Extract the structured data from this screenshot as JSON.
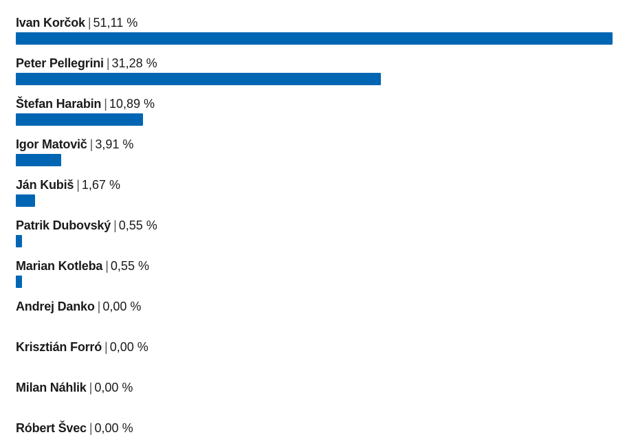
{
  "chart_data": {
    "type": "bar",
    "orientation": "horizontal",
    "bar_color": "#0066b3",
    "max_value": 51.11,
    "unit": "%",
    "items": [
      {
        "name": "Ivan Korčok",
        "value": 51.11,
        "label": "51,11 %"
      },
      {
        "name": "Peter Pellegrini",
        "value": 31.28,
        "label": "31,28 %"
      },
      {
        "name": "Štefan Harabin",
        "value": 10.89,
        "label": "10,89 %"
      },
      {
        "name": "Igor Matovič",
        "value": 3.91,
        "label": "3,91 %"
      },
      {
        "name": "Ján Kubiš",
        "value": 1.67,
        "label": "1,67 %"
      },
      {
        "name": "Patrik Dubovský",
        "value": 0.55,
        "label": "0,55 %"
      },
      {
        "name": "Marian Kotleba",
        "value": 0.55,
        "label": "0,55 %"
      },
      {
        "name": "Andrej Danko",
        "value": 0.0,
        "label": "0,00 %"
      },
      {
        "name": "Krisztián Forró",
        "value": 0.0,
        "label": "0,00 %"
      },
      {
        "name": "Milan Náhlik",
        "value": 0.0,
        "label": "0,00 %"
      },
      {
        "name": "Róbert Švec",
        "value": 0.0,
        "label": "0,00 %"
      }
    ]
  }
}
